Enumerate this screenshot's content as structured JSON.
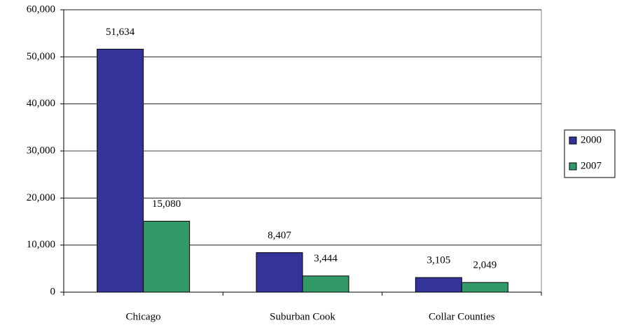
{
  "chart_data": {
    "type": "bar",
    "categories": [
      "Chicago",
      "Suburban Cook",
      "Collar Counties"
    ],
    "series": [
      {
        "name": "2000",
        "color": "#333399",
        "values": [
          51634,
          8407,
          3105
        ],
        "value_labels": [
          "51,634",
          "8,407",
          "3,105"
        ]
      },
      {
        "name": "2007",
        "color": "#339966",
        "values": [
          15080,
          3444,
          2049
        ],
        "value_labels": [
          "15,080",
          "3,444",
          "2,049"
        ]
      }
    ],
    "ylim": [
      0,
      60000
    ],
    "yticks": [
      0,
      {
        "value": 10000,
        "label": "10,000"
      },
      {
        "value": 20000,
        "label": "20,000"
      },
      {
        "value": 30000,
        "label": "30,000"
      },
      {
        "value": 40000,
        "label": "40,000"
      },
      {
        "value": 50000,
        "label": "50,000"
      },
      {
        "value": 60000,
        "label": "60,000"
      }
    ],
    "grid": true,
    "legend": "right"
  }
}
